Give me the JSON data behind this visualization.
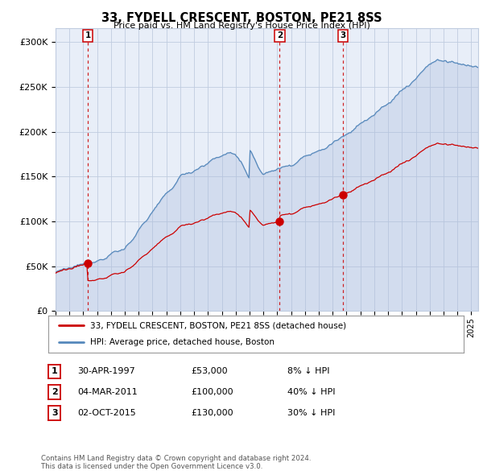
{
  "title": "33, FYDELL CRESCENT, BOSTON, PE21 8SS",
  "subtitle": "Price paid vs. HM Land Registry's House Price Index (HPI)",
  "ylabel_ticks": [
    "£0",
    "£50K",
    "£100K",
    "£150K",
    "£200K",
    "£250K",
    "£300K"
  ],
  "ylim": [
    0,
    315000
  ],
  "xlim_start": 1995.0,
  "xlim_end": 2025.5,
  "purchase_dates": [
    1997.33,
    2011.17,
    2015.75
  ],
  "purchase_prices": [
    53000,
    100000,
    130000
  ],
  "purchase_labels": [
    "1",
    "2",
    "3"
  ],
  "legend_entries": [
    "33, FYDELL CRESCENT, BOSTON, PE21 8SS (detached house)",
    "HPI: Average price, detached house, Boston"
  ],
  "table_rows": [
    [
      "1",
      "30-APR-1997",
      "£53,000",
      "8% ↓ HPI"
    ],
    [
      "2",
      "04-MAR-2011",
      "£100,000",
      "40% ↓ HPI"
    ],
    [
      "3",
      "02-OCT-2015",
      "£130,000",
      "30% ↓ HPI"
    ]
  ],
  "footer": "Contains HM Land Registry data © Crown copyright and database right 2024.\nThis data is licensed under the Open Government Licence v3.0.",
  "plot_bg": "#e8eef8",
  "grid_color": "#c0cce0",
  "red_line_color": "#cc0000",
  "blue_line_color": "#5588bb",
  "blue_fill_color": "#aabbdd",
  "marker_color": "#cc0000",
  "vline_color": "#cc0000",
  "hpi_seed": 12345,
  "red_seed": 99
}
